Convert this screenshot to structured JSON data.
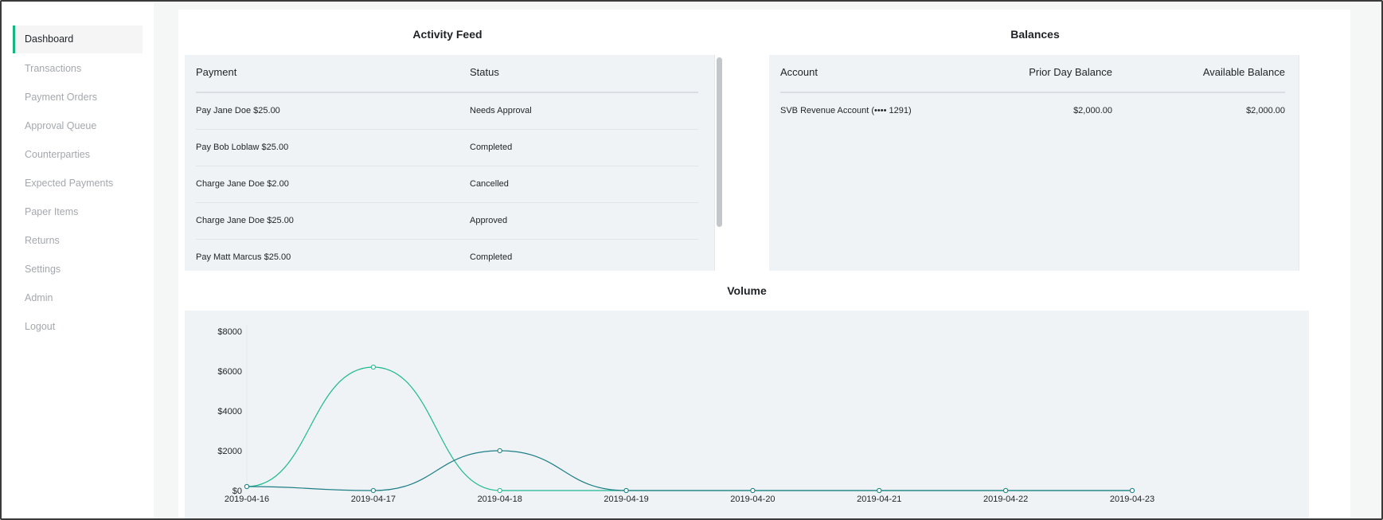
{
  "sidebar": {
    "items": [
      {
        "label": "Dashboard",
        "active": true
      },
      {
        "label": "Transactions",
        "active": false
      },
      {
        "label": "Payment Orders",
        "active": false
      },
      {
        "label": "Approval Queue",
        "active": false
      },
      {
        "label": "Counterparties",
        "active": false
      },
      {
        "label": "Expected Payments",
        "active": false
      },
      {
        "label": "Paper Items",
        "active": false
      },
      {
        "label": "Returns",
        "active": false
      },
      {
        "label": "Settings",
        "active": false
      },
      {
        "label": "Admin",
        "active": false
      },
      {
        "label": "Logout",
        "active": false
      }
    ]
  },
  "activity_feed": {
    "title": "Activity Feed",
    "columns": [
      "Payment",
      "Status"
    ],
    "rows": [
      {
        "payment": "Pay Jane Doe $25.00",
        "status": "Needs Approval"
      },
      {
        "payment": "Pay Bob Loblaw $25.00",
        "status": "Completed"
      },
      {
        "payment": "Charge Jane Doe $2.00",
        "status": "Cancelled"
      },
      {
        "payment": "Charge Jane Doe $25.00",
        "status": "Approved"
      },
      {
        "payment": "Pay Matt Marcus $25.00",
        "status": "Completed"
      }
    ]
  },
  "balances": {
    "title": "Balances",
    "columns": [
      "Account",
      "Prior Day Balance",
      "Available Balance"
    ],
    "rows": [
      {
        "account": "SVB Revenue Account (•••• 1291)",
        "prior_day": "$2,000.00",
        "available": "$2,000.00"
      }
    ]
  },
  "volume": {
    "title": "Volume"
  },
  "colors": {
    "accent": "#16b57f",
    "series_a": "#1fb991",
    "series_b": "#1e7f86",
    "panel_bg": "#eff3f5"
  },
  "chart_data": {
    "type": "line",
    "title": "Volume",
    "xlabel": "",
    "ylabel": "",
    "x": [
      "2019-04-16",
      "2019-04-17",
      "2019-04-18",
      "2019-04-19",
      "2019-04-20",
      "2019-04-21",
      "2019-04-22",
      "2019-04-23"
    ],
    "y_ticks": [
      "$0",
      "$2000",
      "$4000",
      "$6000",
      "$8000"
    ],
    "ylim": [
      0,
      8000
    ],
    "series": [
      {
        "values": [
          200,
          6200,
          0,
          0,
          0,
          0,
          0,
          0
        ]
      },
      {
        "values": [
          200,
          0,
          2000,
          0,
          0,
          0,
          0,
          0
        ]
      }
    ],
    "grid": false,
    "curve": "smooth"
  }
}
